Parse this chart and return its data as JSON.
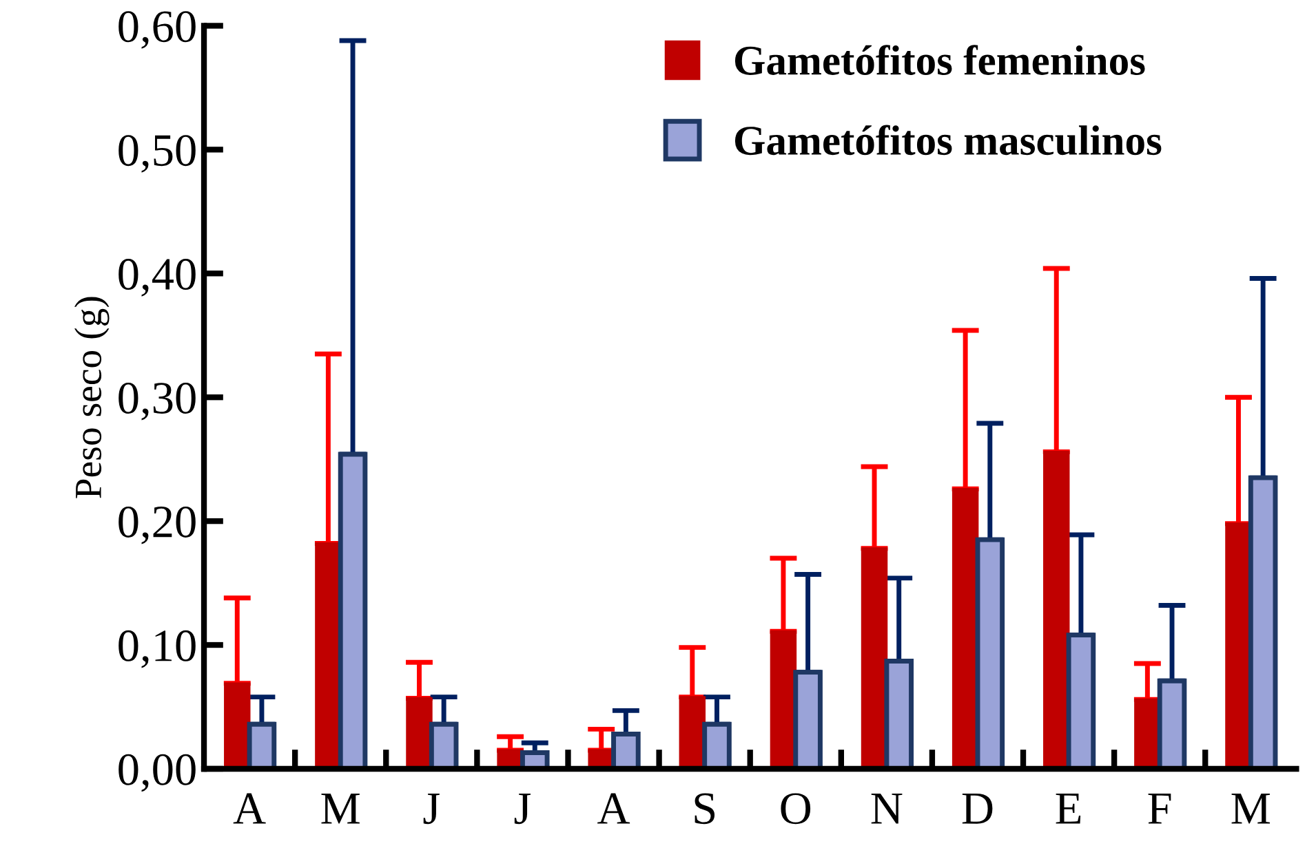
{
  "chart_data": {
    "type": "bar",
    "ylabel": "Peso seco (g)",
    "categories": [
      "A",
      "M",
      "J",
      "J",
      "A",
      "S",
      "O",
      "N",
      "D",
      "E",
      "F",
      "M"
    ],
    "series": [
      {
        "name": "Gametófitos femeninos",
        "color": "#c00000",
        "values": [
          0.069,
          0.182,
          0.057,
          0.015,
          0.015,
          0.058,
          0.111,
          0.178,
          0.226,
          0.256,
          0.056,
          0.198
        ],
        "errors": [
          [
            0.069,
            0.138
          ],
          [
            0.182,
            0.335
          ],
          [
            0.057,
            0.086
          ],
          [
            0.015,
            0.026
          ],
          [
            0.015,
            0.032
          ],
          [
            0.058,
            0.098
          ],
          [
            0.111,
            0.17
          ],
          [
            0.178,
            0.244
          ],
          [
            0.226,
            0.354
          ],
          [
            0.256,
            0.404
          ],
          [
            0.056,
            0.085
          ],
          [
            0.198,
            0.3
          ]
        ]
      },
      {
        "name": "Gametófitos masculinos",
        "color": "#9aa3d8",
        "values": [
          0.036,
          0.254,
          0.036,
          0.013,
          0.028,
          0.036,
          0.078,
          0.087,
          0.185,
          0.108,
          0.071,
          0.235
        ],
        "errors": [
          [
            0.036,
            0.058
          ],
          [
            0.254,
            0.588
          ],
          [
            0.036,
            0.058
          ],
          [
            0.013,
            0.021
          ],
          [
            0.028,
            0.047
          ],
          [
            0.036,
            0.058
          ],
          [
            0.078,
            0.157
          ],
          [
            0.087,
            0.154
          ],
          [
            0.185,
            0.279
          ],
          [
            0.108,
            0.189
          ],
          [
            0.071,
            0.132
          ],
          [
            0.235,
            0.396
          ]
        ]
      }
    ],
    "ylim": [
      0,
      0.6
    ],
    "yticks": [
      {
        "value": 0,
        "label": "0,00"
      },
      {
        "value": 0.1,
        "label": "0,10"
      },
      {
        "value": 0.2,
        "label": "0,20"
      },
      {
        "value": 0.3,
        "label": "0,30"
      },
      {
        "value": 0.4,
        "label": "0,40"
      },
      {
        "value": 0.5,
        "label": "0,50"
      },
      {
        "value": 0.6,
        "label": "0,60"
      }
    ],
    "legend": "top",
    "grid": false
  }
}
